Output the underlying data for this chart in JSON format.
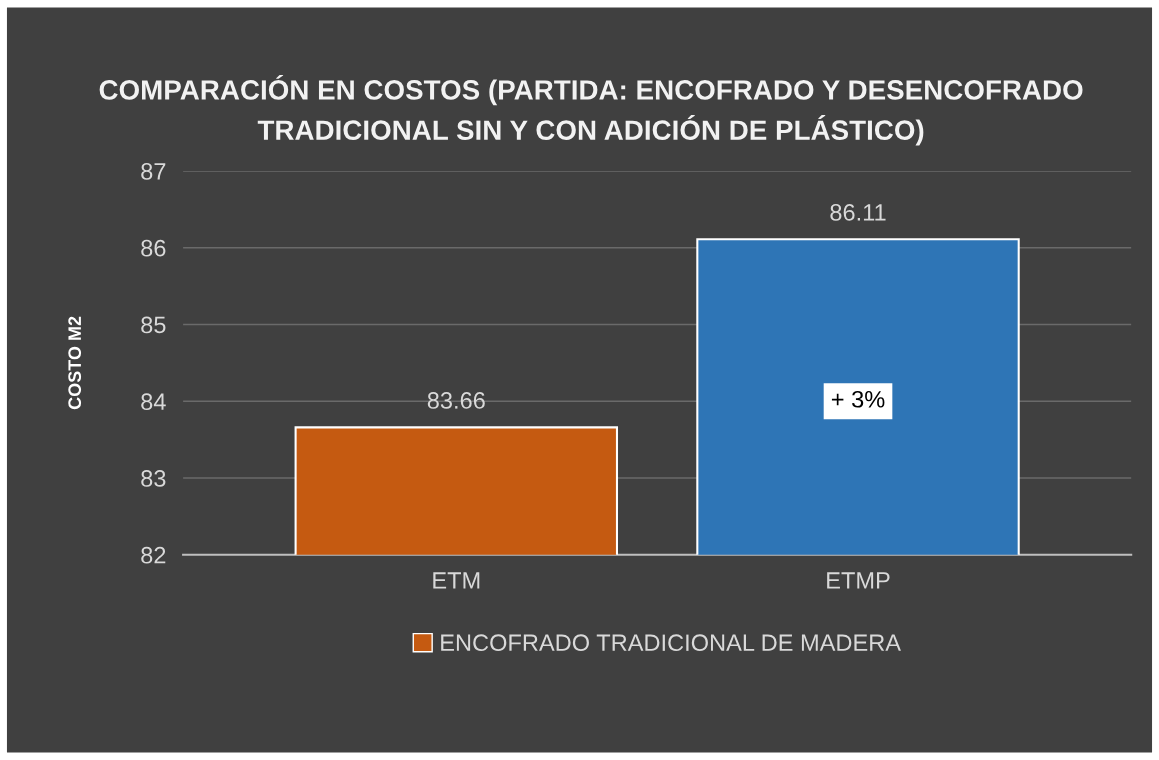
{
  "chart_data": {
    "type": "bar",
    "title": "COMPARACIÓN EN COSTOS (PARTIDA: ENCOFRADO Y DESENCOFRADO TRADICIONAL SIN Y CON ADICIÓN DE PLÁSTICO)",
    "ylabel": "COSTO M2",
    "categories": [
      "ETM",
      "ETMP"
    ],
    "series": [
      {
        "name": "ENCOFRADO TRADICIONAL DE MADERA",
        "colors": [
          "#c55a11",
          "#2e75b6"
        ],
        "values": [
          83.66,
          86.11
        ]
      }
    ],
    "ylim": [
      82,
      87
    ],
    "yticks": [
      82,
      83,
      84,
      85,
      86,
      87
    ],
    "grid": "y",
    "legend": "bottom",
    "data_labels": true,
    "annotations": [
      "+ 3%"
    ]
  }
}
